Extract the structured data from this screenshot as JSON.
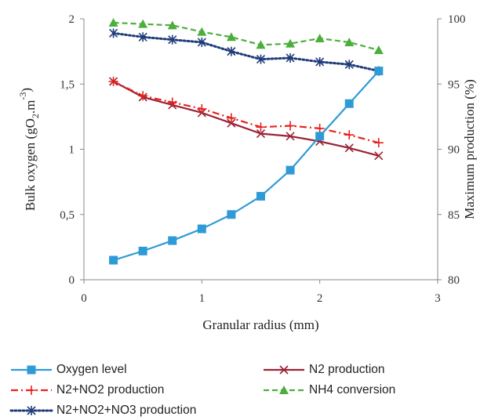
{
  "chart_data": {
    "type": "line",
    "title": "",
    "xlabel": "Granular radius (mm)",
    "ylabel_left": "Bulk oxygen (gO2.m-3)",
    "ylabel_right": "Maximum production (%)",
    "xlim": [
      0,
      3
    ],
    "ylim_left": [
      0,
      2
    ],
    "ylim_right": [
      80,
      100
    ],
    "x_ticks": [
      "0",
      "1",
      "2",
      "3"
    ],
    "x_tick_values": [
      0,
      1,
      2,
      3
    ],
    "y_left_ticks": [
      "0",
      "0,5",
      "1",
      "1,5",
      "2"
    ],
    "y_left_tick_values": [
      0,
      0.5,
      1,
      1.5,
      2
    ],
    "y_right_ticks": [
      "80",
      "85",
      "90",
      "95",
      "100"
    ],
    "y_right_tick_values": [
      80,
      85,
      90,
      95,
      100
    ],
    "grid": false,
    "legend_position": "bottom",
    "x": [
      0.25,
      0.5,
      0.75,
      1.0,
      1.25,
      1.5,
      1.75,
      2.0,
      2.25,
      2.5
    ],
    "series": [
      {
        "name": "Oxygen level",
        "axis": "left",
        "color": "#2e9bd6",
        "marker": "square",
        "dash": "solid",
        "values": [
          0.15,
          0.22,
          0.3,
          0.39,
          0.5,
          0.64,
          0.84,
          1.1,
          1.35,
          1.6
        ]
      },
      {
        "name": "N2 production",
        "axis": "right",
        "color": "#9b2335",
        "marker": "x",
        "dash": "solid",
        "values": [
          95.2,
          94.0,
          93.4,
          92.8,
          92.0,
          91.2,
          91.0,
          90.6,
          90.1,
          89.5
        ]
      },
      {
        "name": "N2+NO2 production",
        "axis": "right",
        "color": "#e8211c",
        "marker": "plus",
        "dash": "dashdot",
        "values": [
          95.2,
          94.1,
          93.6,
          93.1,
          92.4,
          91.7,
          91.8,
          91.6,
          91.1,
          90.5
        ]
      },
      {
        "name": "NH4 conversion",
        "axis": "right",
        "color": "#4caf3c",
        "marker": "triangle",
        "dash": "dashed",
        "values": [
          99.7,
          99.6,
          99.5,
          99.0,
          98.6,
          98.0,
          98.1,
          98.5,
          98.2,
          97.6
        ]
      },
      {
        "name": "N2+NO2+NO3 production",
        "axis": "right",
        "color": "#1f3b7a",
        "marker": "asterisk",
        "dash": "dotted",
        "values": [
          98.9,
          98.6,
          98.4,
          98.2,
          97.5,
          96.9,
          97.0,
          96.7,
          96.5,
          96.0
        ]
      }
    ]
  }
}
